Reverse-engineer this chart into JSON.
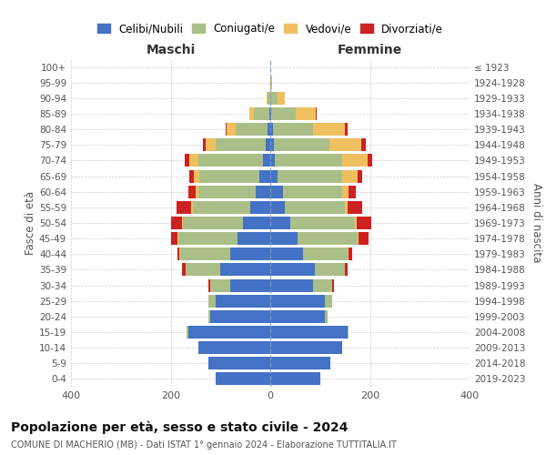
{
  "age_groups": [
    "0-4",
    "5-9",
    "10-14",
    "15-19",
    "20-24",
    "25-29",
    "30-34",
    "35-39",
    "40-44",
    "45-49",
    "50-54",
    "55-59",
    "60-64",
    "65-69",
    "70-74",
    "75-79",
    "80-84",
    "85-89",
    "90-94",
    "95-99",
    "100+"
  ],
  "birth_years": [
    "2019-2023",
    "2014-2018",
    "2009-2013",
    "2004-2008",
    "1999-2003",
    "1994-1998",
    "1989-1993",
    "1984-1988",
    "1979-1983",
    "1974-1978",
    "1969-1973",
    "1964-1968",
    "1959-1963",
    "1954-1958",
    "1949-1953",
    "1944-1948",
    "1939-1943",
    "1934-1938",
    "1929-1933",
    "1924-1928",
    "≤ 1923"
  ],
  "colors": {
    "celibi": "#4472C4",
    "coniugati": "#AABF88",
    "vedovi": "#F0C060",
    "divorziati": "#CC2222"
  },
  "maschi": {
    "celibi": [
      110,
      125,
      145,
      165,
      120,
      110,
      80,
      100,
      80,
      65,
      55,
      40,
      30,
      22,
      15,
      10,
      5,
      2,
      0,
      0,
      0
    ],
    "coniugati": [
      0,
      0,
      0,
      3,
      5,
      15,
      40,
      70,
      100,
      120,
      120,
      115,
      115,
      120,
      130,
      100,
      65,
      30,
      5,
      0,
      0
    ],
    "vedovi": [
      0,
      0,
      0,
      0,
      0,
      0,
      0,
      0,
      2,
      2,
      2,
      3,
      5,
      12,
      18,
      20,
      18,
      10,
      3,
      0,
      0
    ],
    "divorziati": [
      0,
      0,
      0,
      0,
      0,
      0,
      5,
      8,
      5,
      12,
      22,
      30,
      15,
      8,
      8,
      5,
      2,
      0,
      0,
      0,
      0
    ]
  },
  "femmine": {
    "celibi": [
      100,
      120,
      145,
      155,
      110,
      110,
      85,
      90,
      65,
      55,
      40,
      30,
      25,
      15,
      10,
      8,
      5,
      2,
      0,
      0,
      0
    ],
    "coniugati": [
      0,
      0,
      0,
      2,
      5,
      15,
      40,
      60,
      90,
      120,
      130,
      120,
      120,
      130,
      135,
      110,
      80,
      50,
      15,
      2,
      0
    ],
    "vedovi": [
      0,
      0,
      0,
      0,
      0,
      0,
      0,
      0,
      2,
      2,
      3,
      5,
      12,
      30,
      50,
      65,
      65,
      40,
      15,
      2,
      0
    ],
    "divorziati": [
      0,
      0,
      0,
      0,
      0,
      0,
      3,
      5,
      8,
      20,
      30,
      30,
      15,
      10,
      10,
      8,
      5,
      2,
      0,
      0,
      0
    ]
  },
  "title": "Popolazione per età, sesso e stato civile - 2024",
  "subtitle": "COMUNE DI MACHERIO (MB) - Dati ISTAT 1° gennaio 2024 - Elaborazione TUTTITALIA.IT",
  "xlabel_left": "Maschi",
  "xlabel_right": "Femmine",
  "ylabel_left": "Fasce di età",
  "ylabel_right": "Anni di nascita",
  "xlim": 400,
  "background_color": "#ffffff",
  "grid_color": "#cccccc",
  "legend_labels": [
    "Celibi/Nubili",
    "Coniugati/e",
    "Vedovi/e",
    "Divorziati/e"
  ]
}
